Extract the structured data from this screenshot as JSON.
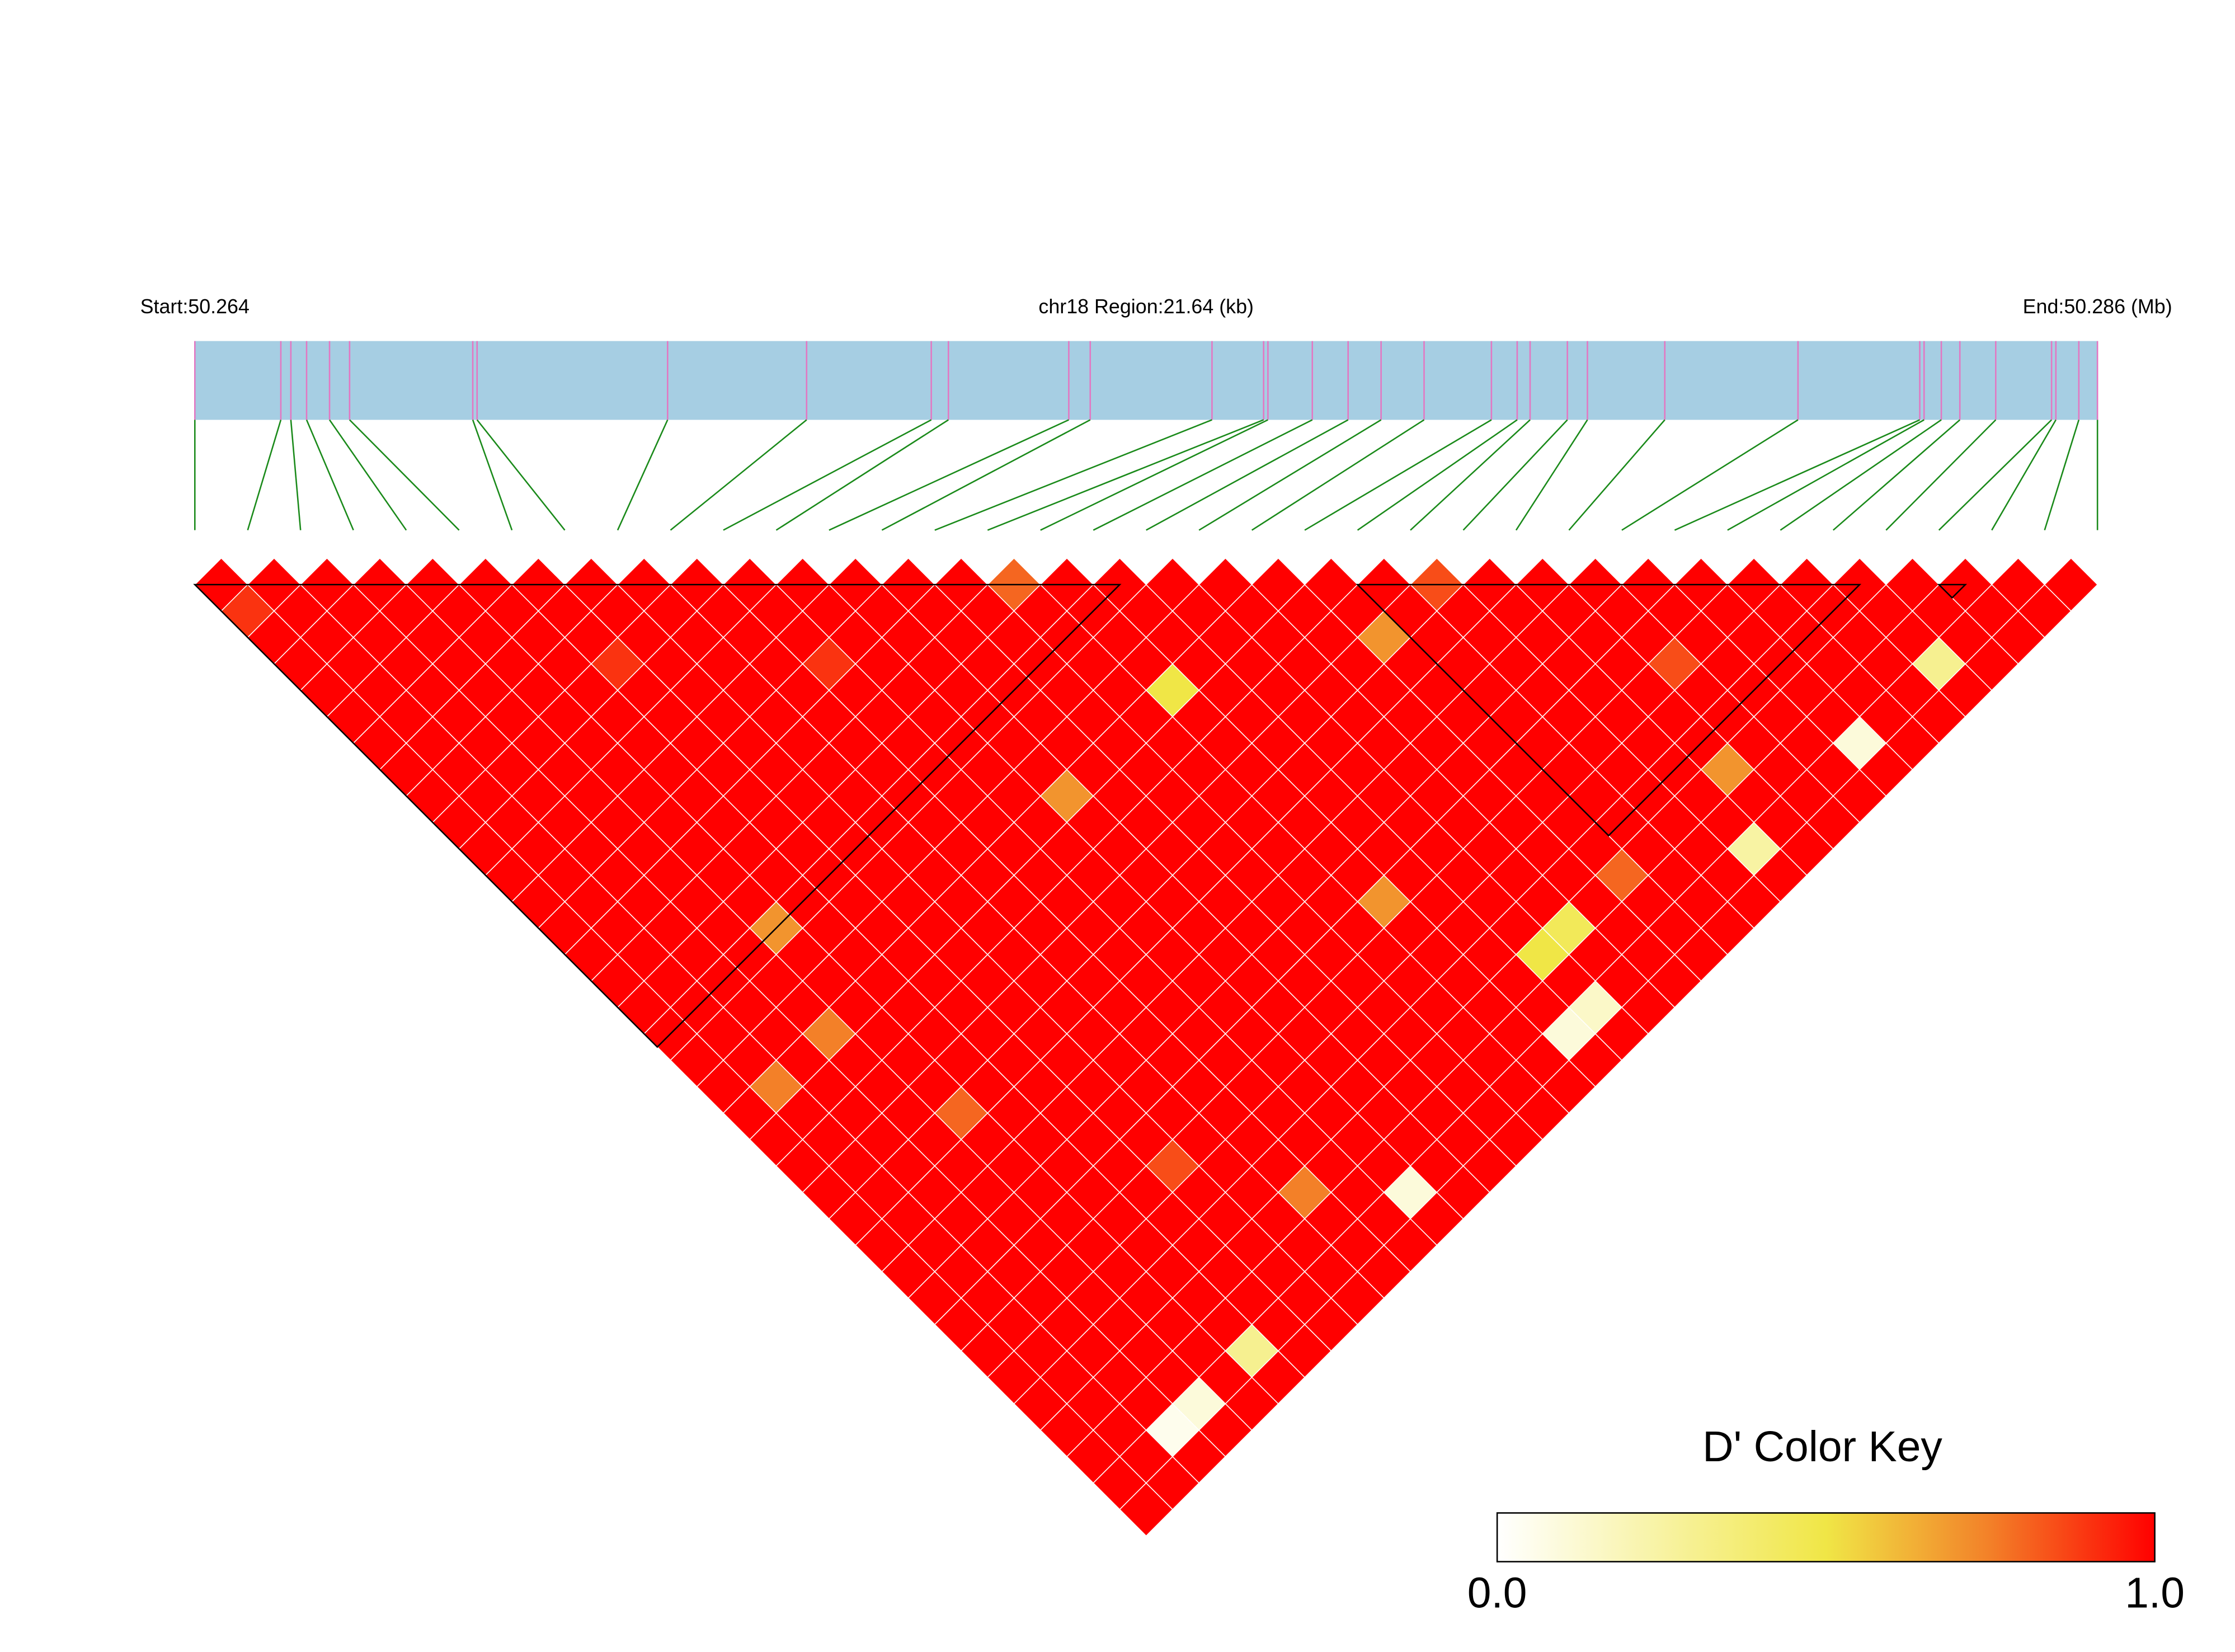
{
  "chart_data": {
    "type": "ld_heatmap",
    "start_label": "Start:50.264",
    "region_label": "chr18 Region:21.64 (kb)",
    "end_label": "End:50.286 (Mb)",
    "xlim": [
      0,
      21.64
    ],
    "snp_positions": [
      0,
      0.978,
      1.092,
      1.271,
      1.532,
      1.76,
      3.161,
      3.21,
      5.377,
      6.958,
      8.376,
      8.571,
      9.94,
      10.184,
      11.569,
      12.156,
      12.205,
      12.71,
      13.117,
      13.492,
      13.981,
      14.747,
      15.04,
      15.187,
      15.611,
      15.839,
      16.719,
      18.234,
      19.619,
      19.668,
      19.864,
      20.075,
      20.483,
      21.118,
      21.167,
      21.428,
      21.64
    ],
    "ld": [
      [
        1,
        0.9,
        1,
        1,
        1,
        1,
        1,
        1,
        1,
        1,
        1,
        1,
        1,
        1,
        1,
        1,
        1,
        1,
        1,
        1,
        1,
        1,
        1,
        1,
        1,
        1,
        1,
        1,
        1,
        1,
        1,
        1,
        1,
        1,
        1,
        1
      ],
      [
        1,
        1,
        1,
        1,
        1,
        1,
        1,
        1,
        1,
        1,
        1,
        1,
        1,
        1,
        1,
        1,
        1,
        1,
        1,
        0.75,
        1,
        1,
        1,
        1,
        1,
        1,
        1,
        1,
        1,
        1,
        1,
        1,
        1,
        1,
        1
      ],
      [
        1,
        1,
        1,
        1,
        1,
        1,
        1,
        1,
        1,
        1,
        1,
        1,
        1,
        1,
        1,
        1,
        1,
        1,
        1,
        1,
        1,
        1,
        1,
        1,
        1,
        1,
        1,
        1,
        1,
        1,
        1,
        1,
        0.05,
        1
      ],
      [
        1,
        1,
        1,
        1,
        1,
        1,
        1,
        1,
        1,
        1,
        1,
        1,
        1,
        1,
        1,
        1,
        1,
        0.75,
        1,
        1,
        1,
        1,
        1,
        1,
        1,
        1,
        1,
        1,
        1,
        1,
        1,
        0.1,
        1
      ],
      [
        1,
        1,
        1,
        1,
        1,
        1,
        1,
        1,
        1,
        1,
        1,
        1,
        1,
        0.7,
        1,
        1,
        1,
        1,
        1,
        1,
        0.8,
        1,
        1,
        1,
        1,
        1,
        1,
        1,
        1,
        1,
        1,
        1
      ],
      [
        1,
        1,
        1,
        1,
        1,
        1,
        1,
        1,
        1,
        1,
        1,
        1,
        1,
        1,
        1,
        1,
        1,
        1,
        1,
        1,
        1,
        1,
        1,
        1,
        1,
        1,
        1,
        1,
        1,
        0.3,
        1
      ],
      [
        1,
        1,
        1,
        0.9,
        1,
        1,
        1,
        1,
        1,
        1,
        1,
        1,
        1,
        1,
        1,
        1,
        1,
        1,
        1,
        1,
        1,
        1,
        1,
        1,
        1,
        1,
        1,
        1,
        1,
        1
      ],
      [
        1,
        1,
        1,
        1,
        1,
        1,
        1,
        1,
        1,
        1,
        1,
        1,
        1,
        1,
        1,
        1,
        1,
        1,
        1,
        1,
        1,
        1,
        0.85,
        1,
        1,
        1,
        1,
        1,
        1
      ],
      [
        1,
        1,
        1,
        1,
        1,
        1,
        1,
        1,
        1,
        1,
        1,
        1,
        1,
        1,
        1,
        1,
        1,
        1,
        1,
        1,
        1,
        1,
        1,
        1,
        1,
        1,
        1,
        1
      ],
      [
        1,
        1,
        1,
        1,
        1,
        1,
        1,
        1,
        1,
        1,
        1,
        1,
        1,
        1,
        1,
        1,
        1,
        1,
        1,
        1,
        1,
        1,
        1,
        0.75,
        1,
        1,
        1
      ],
      [
        1,
        1,
        1,
        0.9,
        1,
        1,
        1,
        1,
        1,
        1,
        1,
        1,
        1,
        1,
        1,
        1,
        1,
        1,
        1,
        1,
        1,
        1,
        1,
        1,
        1,
        1
      ],
      [
        1,
        1,
        1,
        1,
        1,
        1,
        1,
        1,
        1,
        1,
        1,
        1,
        1,
        1,
        1,
        1,
        1,
        1,
        1,
        1,
        1,
        1,
        1,
        0.1,
        1
      ],
      [
        1,
        1,
        1,
        1,
        1,
        1,
        1,
        1,
        0.7,
        1,
        1,
        1,
        1,
        1,
        1,
        1,
        1,
        1,
        1,
        1,
        1,
        1,
        1,
        1
      ],
      [
        1,
        1,
        1,
        1,
        1,
        1,
        1,
        1,
        1,
        1,
        1,
        1,
        1,
        1,
        1,
        1,
        1,
        1,
        1,
        1,
        1,
        1,
        1
      ],
      [
        1,
        1,
        1,
        1,
        1,
        1,
        1,
        1,
        1,
        1,
        1,
        1,
        1,
        1,
        1,
        1,
        1,
        1,
        1,
        1,
        1,
        1
      ],
      [
        0.8,
        1,
        1,
        1,
        1,
        1,
        1,
        1,
        1,
        1,
        1,
        1,
        1,
        1,
        1,
        1,
        1,
        1,
        1,
        1,
        1
      ],
      [
        1,
        1,
        1,
        1,
        0.5,
        1,
        1,
        1,
        1,
        1,
        1,
        1,
        0.7,
        1,
        1,
        1,
        1,
        1,
        1,
        1
      ],
      [
        1,
        1,
        1,
        1,
        1,
        1,
        1,
        1,
        1,
        1,
        1,
        1,
        1,
        1,
        1,
        1,
        1,
        0.1,
        1
      ],
      [
        1,
        1,
        1,
        1,
        1,
        1,
        1,
        1,
        1,
        1,
        1,
        1,
        1,
        1,
        0.5,
        1,
        0.15,
        1
      ],
      [
        1,
        1,
        1,
        1,
        1,
        1,
        1,
        1,
        1,
        1,
        1,
        1,
        1,
        0.45,
        1,
        1,
        1
      ],
      [
        1,
        1,
        1,
        1,
        1,
        1,
        1,
        1,
        1,
        1,
        1,
        1,
        1,
        1,
        1,
        1
      ],
      [
        1,
        1,
        0.7,
        1,
        1,
        1,
        1,
        1,
        1,
        1,
        1,
        0.8,
        1,
        1,
        1
      ],
      [
        1,
        1,
        1,
        1,
        1,
        1,
        1,
        1,
        1,
        1,
        1,
        1,
        1,
        1
      ],
      [
        0.85,
        1,
        1,
        1,
        1,
        1,
        1,
        1,
        1,
        1,
        1,
        1,
        1
      ],
      [
        1,
        1,
        1,
        1,
        1,
        1,
        1,
        1,
        1,
        1,
        0.25,
        1
      ],
      [
        1,
        1,
        1,
        1,
        1,
        1,
        1,
        0.7,
        1,
        1,
        1
      ],
      [
        1,
        1,
        1,
        0.85,
        1,
        1,
        1,
        1,
        1,
        1
      ],
      [
        1,
        1,
        1,
        1,
        1,
        1,
        1,
        1,
        1
      ],
      [
        1,
        1,
        1,
        1,
        1,
        1,
        0.1,
        1
      ],
      [
        1,
        1,
        1,
        1,
        1,
        1,
        1
      ],
      [
        1,
        1,
        1,
        1,
        1,
        1
      ],
      [
        1,
        1,
        1,
        0.3,
        1
      ],
      [
        1,
        1,
        1,
        1
      ],
      [
        1,
        1,
        1
      ],
      [
        1,
        1
      ],
      [
        1
      ]
    ],
    "blocks": [
      [
        0,
        17
      ],
      [
        22,
        31
      ],
      [
        33,
        33
      ]
    ],
    "color_key": {
      "title": "D' Color Key",
      "ticks": [
        {
          "value": 0,
          "label": "0.0"
        },
        {
          "value": 1,
          "label": "1.0"
        }
      ]
    }
  }
}
